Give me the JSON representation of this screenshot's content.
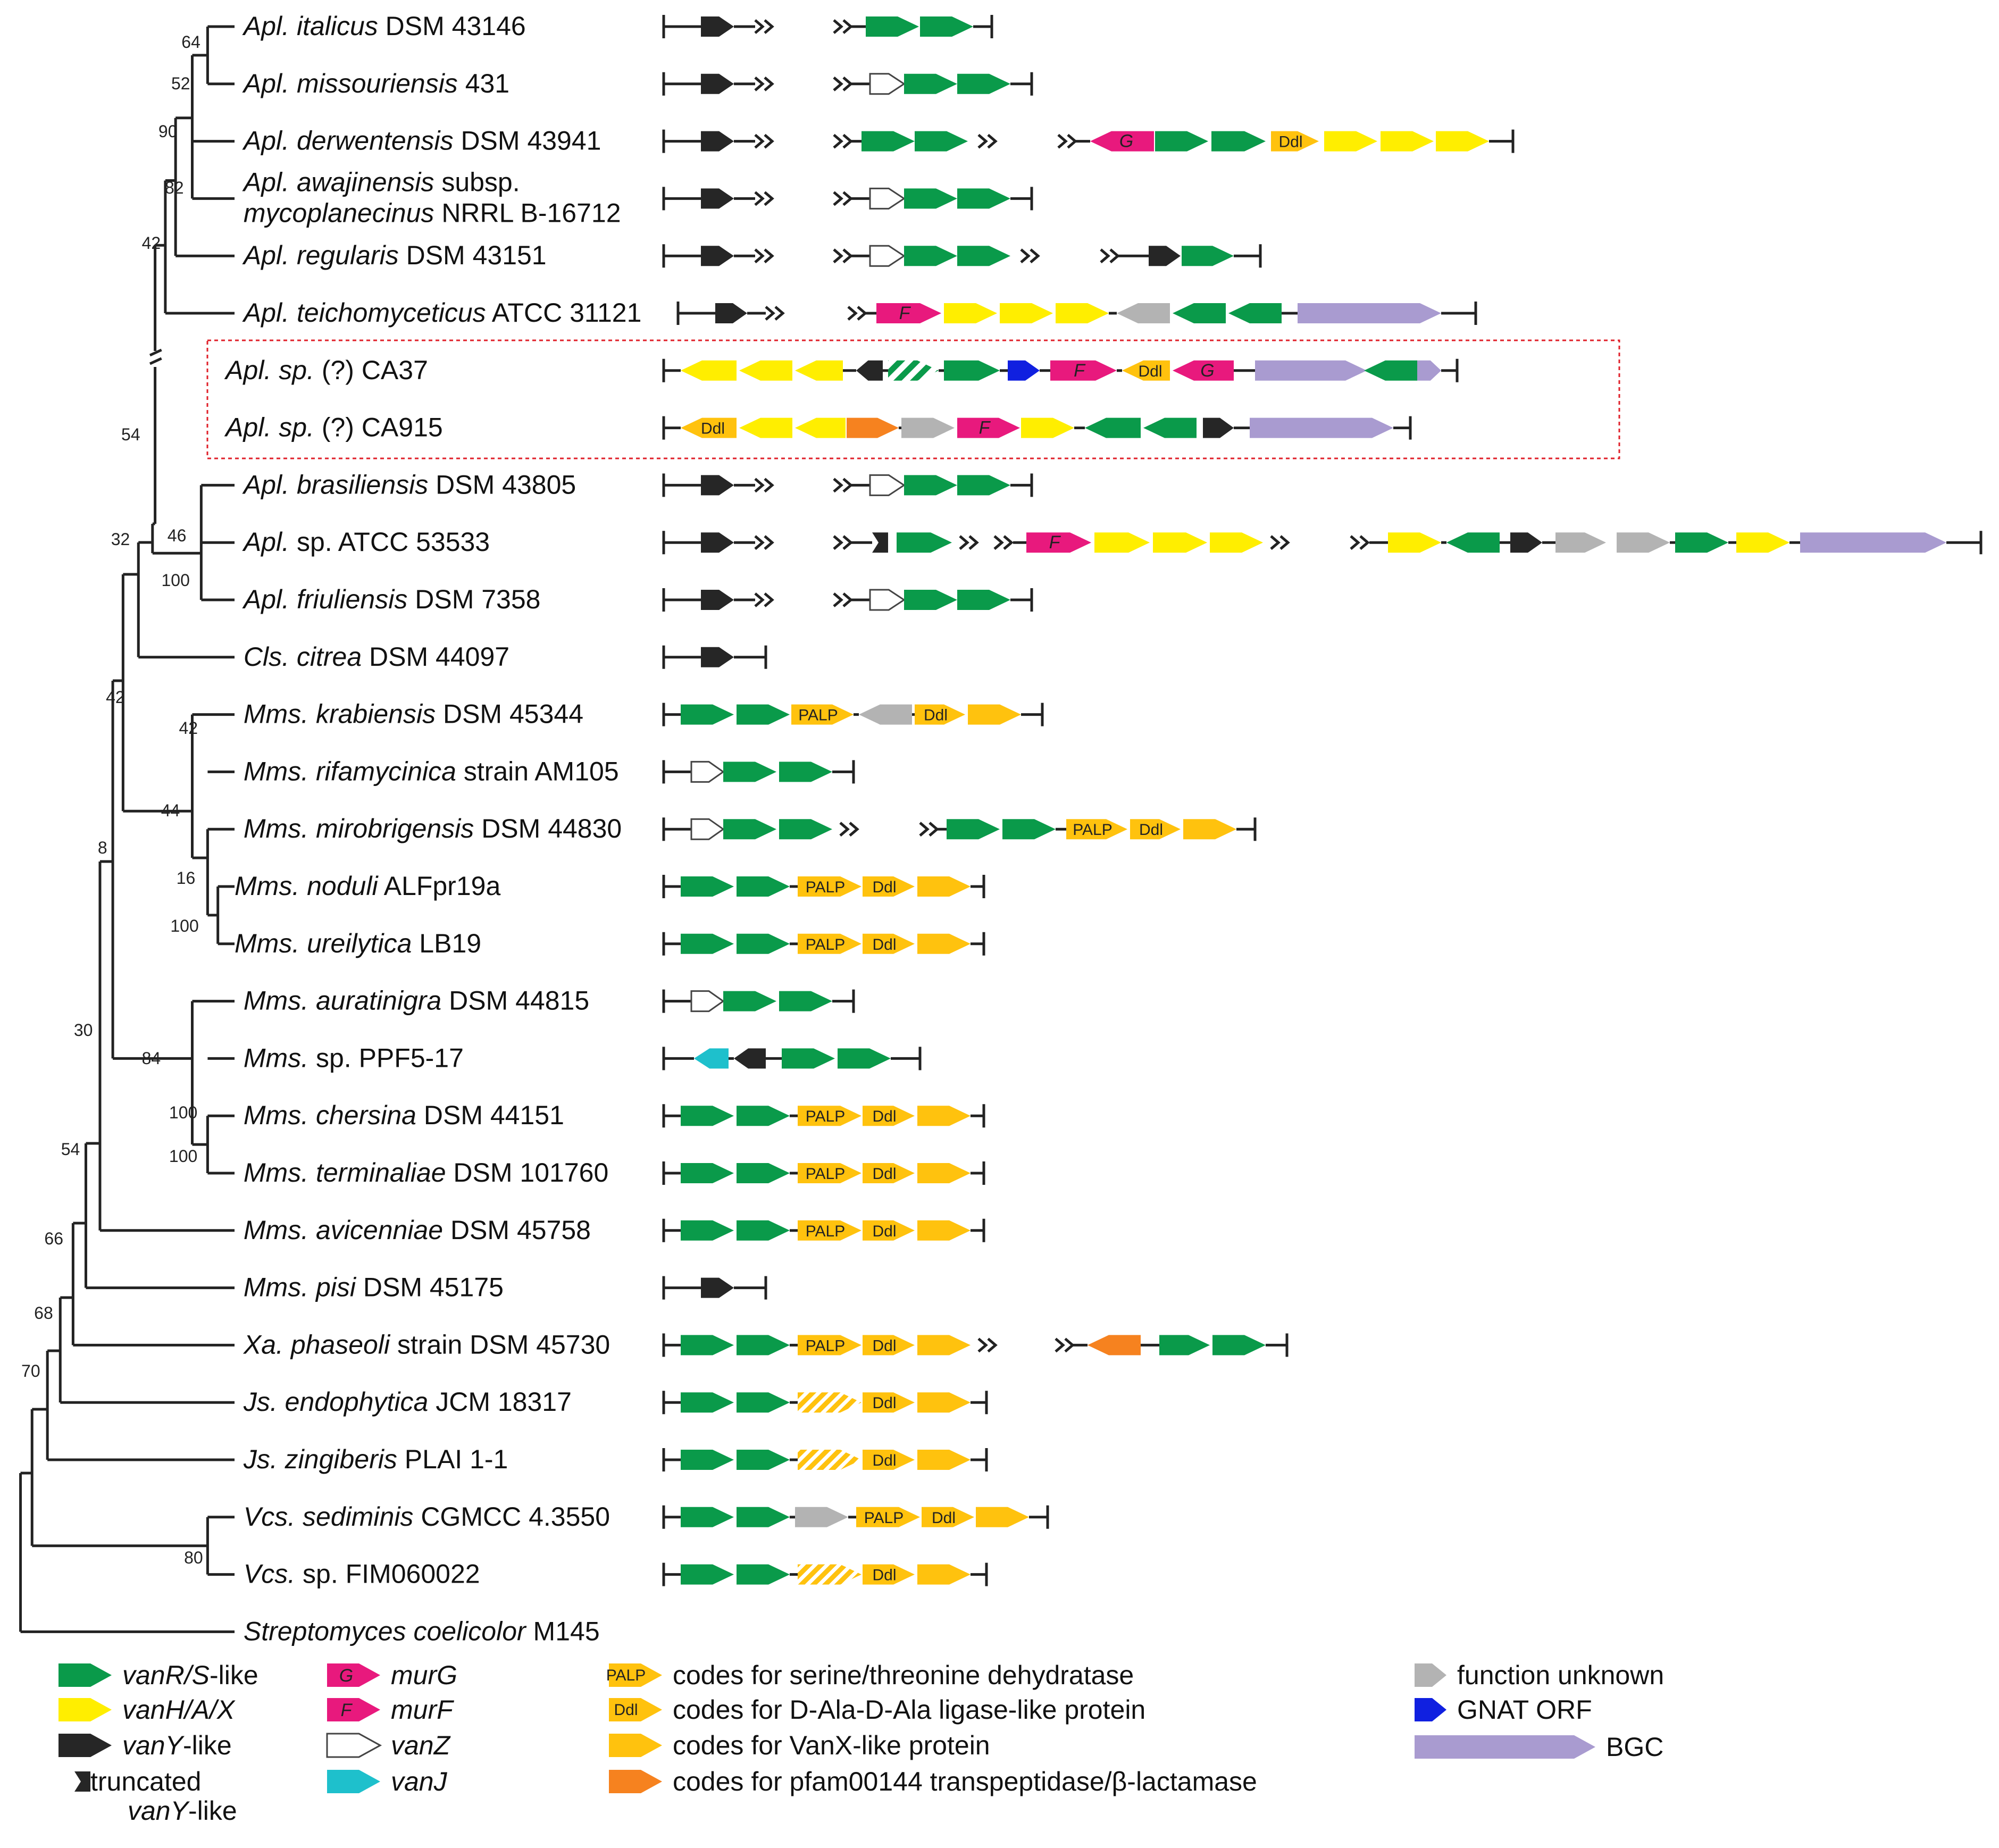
{
  "colors": {
    "green": "#0a9a4a",
    "yellow": "#ffee00",
    "black": "#262626",
    "magenta": "#e8197d",
    "white": "#ffffff",
    "cyan": "#1ec0cc",
    "palp": "#ffc20e",
    "ddl": "#ffc20e",
    "vanx": "#ffc20e",
    "orange": "#f6821f",
    "grey": "#b3b3b3",
    "blue": "#1020e0",
    "bgc": "#a99bd0",
    "box_border": "#e0202a"
  },
  "taxa": [
    {
      "it": "Apl. italicus",
      "rest": " DSM 43146"
    },
    {
      "it": "Apl. missouriensis",
      "rest": " 431"
    },
    {
      "it": "Apl. derwentensis",
      "rest": " DSM 43941"
    },
    {
      "it": "Apl. awajinensis",
      "rest": " subsp.",
      "it2": "mycoplanecinus",
      "rest2": " NRRL B-16712"
    },
    {
      "it": "Apl. regularis",
      "rest": " DSM 43151"
    },
    {
      "it": "Apl. teichomyceticus",
      "rest": " ATCC 31121"
    },
    {
      "it": "Apl.",
      "it_b": " sp.",
      "rest": " (?) CA37"
    },
    {
      "it": "Apl.",
      "it_b": " sp.",
      "rest": " (?) CA915"
    },
    {
      "it": "Apl. brasiliensis",
      "rest": " DSM 43805"
    },
    {
      "it": "Apl.",
      "rest": " sp. ATCC 53533"
    },
    {
      "it": "Apl. friuliensis",
      "rest": " DSM 7358"
    },
    {
      "it": "Cls. citrea",
      "rest": " DSM 44097"
    },
    {
      "it": "Mms. krabiensis",
      "rest": " DSM 45344"
    },
    {
      "it": "Mms. rifamycinica",
      "rest": " strain AM105"
    },
    {
      "it": "Mms. mirobrigensis",
      "rest": " DSM 44830"
    },
    {
      "it": "Mms. noduli",
      "rest": " ALFpr19a"
    },
    {
      "it": "Mms. ureilytica",
      "rest": " LB19"
    },
    {
      "it": "Mms. auratinigra",
      "rest": " DSM 44815"
    },
    {
      "it": "Mms.",
      "rest": " sp. PPF5-17"
    },
    {
      "it": "Mms. chersina",
      "rest": " DSM 44151"
    },
    {
      "it": "Mms. terminaliae",
      "rest": " DSM 101760"
    },
    {
      "it": "Mms. avicenniae",
      "rest": " DSM 45758"
    },
    {
      "it": "Mms. pisi",
      "rest": " DSM 45175"
    },
    {
      "it": "Xa. phaseoli",
      "rest": " strain DSM 45730"
    },
    {
      "it": "Js. endophytica",
      "rest": " JCM 18317"
    },
    {
      "it": "Js. zingiberis",
      "rest": " PLAI 1-1"
    },
    {
      "it": "Vcs. sediminis",
      "rest": " CGMCC 4.3550"
    },
    {
      "it": "Vcs.",
      "rest": " sp. FIM060022"
    },
    {
      "it": "Streptomyces coelicolor",
      "rest": " M145"
    }
  ],
  "bootstrap": [
    "64",
    "52",
    "90",
    "82",
    "42",
    "54",
    "46",
    "100",
    "32",
    "42",
    "42",
    "44",
    "16",
    "100",
    "8",
    "84",
    "100",
    "100",
    "30",
    "54",
    "66",
    "68",
    "70",
    "80"
  ],
  "gene_text": {
    "PALP": "PALP",
    "Ddl": "Ddl",
    "G": "G",
    "F": "F"
  },
  "legend": [
    {
      "key": "green",
      "it": "vanR/S",
      "rest": "-like"
    },
    {
      "key": "yellow",
      "it": "vanH/A/X",
      "rest": ""
    },
    {
      "key": "black",
      "it": "vanY",
      "rest": "-like"
    },
    {
      "key": "trunc",
      "it": "",
      "rest": "truncated",
      "it2": "vanY",
      "rest2": "-like"
    },
    {
      "key": "murG",
      "it": "murG",
      "rest": ""
    },
    {
      "key": "murF",
      "it": "murF",
      "rest": ""
    },
    {
      "key": "white",
      "it": "vanZ",
      "rest": ""
    },
    {
      "key": "cyan",
      "it": "vanJ",
      "rest": ""
    },
    {
      "key": "palp",
      "it": "",
      "rest": "codes for serine/threonine dehydratase"
    },
    {
      "key": "ddl",
      "it": "",
      "rest": "codes for D-Ala-D-Ala ligase-like protein"
    },
    {
      "key": "vanx",
      "it": "",
      "rest": "codes for VanX-like protein"
    },
    {
      "key": "orange",
      "it": "",
      "rest": "codes for pfam00144 transpeptidase/β-lactamase"
    },
    {
      "key": "grey",
      "it": "",
      "rest": "function unknown"
    },
    {
      "key": "blue",
      "it": "",
      "rest": "GNAT ORF"
    },
    {
      "key": "bgc",
      "it": "",
      "rest": "BGC"
    }
  ]
}
